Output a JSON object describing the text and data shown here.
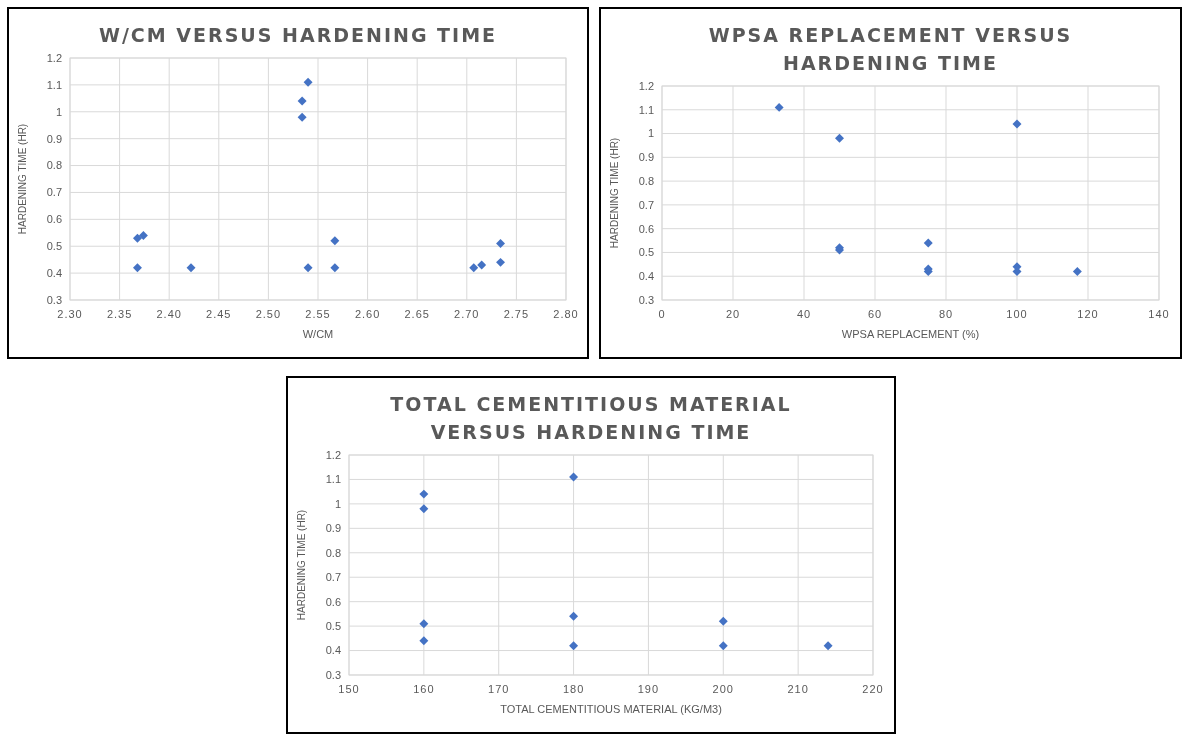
{
  "chart_data": [
    {
      "type": "scatter",
      "title": "W/CM VERSUS HARDENING TIME",
      "xlabel": "W/CM",
      "ylabel": "HARDENING TIME (HR)",
      "marker": "diamond",
      "grid": true,
      "xlim": [
        2.3,
        2.8
      ],
      "xticks": [
        {
          "value": 2.3,
          "label": "2.30"
        },
        2.35,
        {
          "value": 2.4,
          "label": "2.40"
        },
        2.45,
        {
          "value": 2.5,
          "label": "2.50"
        },
        2.55,
        {
          "value": 2.6,
          "label": "2.60"
        },
        2.65,
        {
          "value": 2.7,
          "label": "2.70"
        },
        2.75,
        {
          "value": 2.8,
          "label": "2.80"
        }
      ],
      "ylim": [
        0.3,
        1.2
      ],
      "yticks": [
        0.3,
        0.4,
        0.5,
        0.6,
        0.7,
        0.8,
        0.9,
        1,
        1.1,
        1.2
      ],
      "series": [
        {
          "color": "#4472c4",
          "x": [
            2.368,
            2.374,
            2.368,
            2.422,
            2.54,
            2.534,
            2.534,
            2.54,
            2.567,
            2.567,
            2.707,
            2.715,
            2.734,
            2.734
          ],
          "values": [
            0.53,
            0.54,
            0.42,
            0.42,
            1.11,
            1.04,
            0.98,
            0.42,
            0.52,
            0.42,
            0.42,
            0.43,
            0.51,
            0.44
          ]
        }
      ]
    },
    {
      "type": "scatter",
      "title": "WPSA REPLACEMENT VERSUS HARDENING TIME",
      "xlabel": "WPSA REPLACEMENT (%)",
      "ylabel": "HARDENING TIME (HR)",
      "marker": "diamond",
      "grid": true,
      "xlim": [
        0,
        140
      ],
      "xticks": [
        0,
        20,
        40,
        60,
        80,
        100,
        120,
        140
      ],
      "ylim": [
        0.3,
        1.2
      ],
      "yticks": [
        0.3,
        0.4,
        0.5,
        0.6,
        0.7,
        0.8,
        0.9,
        1,
        1.1,
        1.2
      ],
      "series": [
        {
          "color": "#4472c4",
          "x": [
            33,
            100,
            50,
            50,
            50,
            75,
            75,
            75,
            100,
            100,
            117
          ],
          "values": [
            1.11,
            1.04,
            0.98,
            0.52,
            0.51,
            0.54,
            0.42,
            0.43,
            0.44,
            0.42,
            0.42
          ]
        }
      ]
    },
    {
      "type": "scatter",
      "title": "TOTAL CEMENTITIOUS MATERIAL VERSUS HARDENING TIME",
      "xlabel": "TOTAL CEMENTITIOUS MATERIAL (KG/M3)",
      "ylabel": "HARDENING TIME (HR)",
      "marker": "diamond",
      "grid": true,
      "xlim": [
        150,
        220
      ],
      "xticks": [
        150,
        160,
        170,
        180,
        190,
        200,
        210,
        220
      ],
      "ylim": [
        0.3,
        1.2
      ],
      "yticks": [
        0.3,
        0.4,
        0.5,
        0.6,
        0.7,
        0.8,
        0.9,
        1,
        1.1,
        1.2
      ],
      "series": [
        {
          "color": "#4472c4",
          "x": [
            160,
            160,
            160,
            160,
            180,
            180,
            180,
            200,
            200,
            214
          ],
          "values": [
            1.04,
            0.98,
            0.51,
            0.44,
            1.11,
            0.54,
            0.42,
            0.52,
            0.42,
            0.42
          ]
        }
      ]
    }
  ]
}
